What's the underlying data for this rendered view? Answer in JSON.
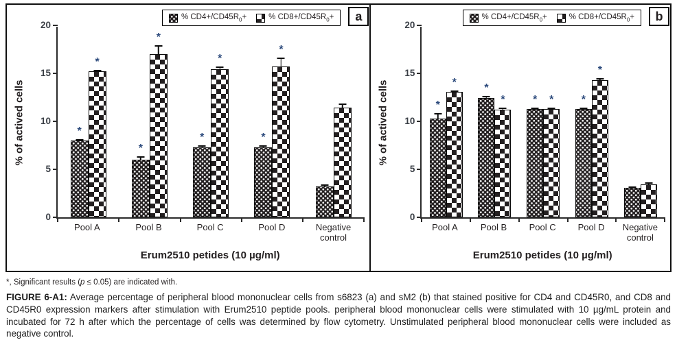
{
  "colors": {
    "bar_fill": "#231f20",
    "asterisk": "#2c4a7c",
    "axis": "#2a2a2a",
    "text": "#231f20"
  },
  "legend": {
    "items": [
      {
        "name": "cd4",
        "pre": "% CD4+/CD45R",
        "sub": "0",
        "post": "+"
      },
      {
        "name": "cd8",
        "pre": "% CD8+/CD45R",
        "sub": "0",
        "post": "+"
      }
    ]
  },
  "footnote": {
    "star": "*, ",
    "pre": "Significant results (",
    "p": "p",
    "post": " ≤ 0.05) are indicated with."
  },
  "caption": {
    "label": "FIGURE 6-A1:",
    "text": " Average percentage of peripheral blood mononuclear cells from s6823 (a) and sM2 (b) that stained positive for CD4 and CD45R0, and CD8 and CD45R0 expression markers after stimulation with Erum2510 peptide pools. peripheral blood mononuclear cells were stimulated with 10 µg/mL protein and incubated for 72 h after which the percentage of cells was determined by flow cytometry. Unstimulated peripheral blood mononuclear cells were included as negative control."
  },
  "chart_data": [
    {
      "type": "bar",
      "panel_label": "a",
      "subject": "s6823",
      "categories": [
        "Pool A",
        "Pool B",
        "Pool C",
        "Pool D",
        "Negative control"
      ],
      "series": [
        {
          "name": "% CD4+/CD45R0+",
          "values": [
            8.0,
            6.0,
            7.3,
            7.3,
            3.2
          ],
          "errors": [
            0.2,
            0.4,
            0.3,
            0.3,
            0.3
          ],
          "significant": [
            true,
            true,
            true,
            true,
            false
          ]
        },
        {
          "name": "% CD8+/CD45R0+",
          "values": [
            15.2,
            17.0,
            15.4,
            15.7,
            11.4
          ],
          "errors": [
            0.2,
            1.0,
            0.4,
            1.0,
            0.5
          ],
          "significant": [
            true,
            true,
            true,
            true,
            false
          ]
        }
      ],
      "xlabel": "Erum2510 petides (10 µg/ml)",
      "ylabel": "% of actived cells",
      "ylim": [
        0,
        20
      ],
      "yticks": [
        0,
        5,
        10,
        15,
        20
      ],
      "grid": false,
      "legend_position": "top-right"
    },
    {
      "type": "bar",
      "panel_label": "b",
      "subject": "sM2",
      "categories": [
        "Pool A",
        "Pool B",
        "Pool C",
        "Pool D",
        "Negative control"
      ],
      "series": [
        {
          "name": "% CD4+/CD45R0+",
          "values": [
            10.3,
            12.4,
            11.3,
            11.3,
            3.1
          ],
          "errors": [
            0.6,
            0.3,
            0.2,
            0.2,
            0.2
          ],
          "significant": [
            true,
            true,
            true,
            true,
            false
          ]
        },
        {
          "name": "% CD8+/CD45R0+",
          "values": [
            13.1,
            11.2,
            11.3,
            14.3,
            3.4
          ],
          "errors": [
            0.2,
            0.3,
            0.2,
            0.3,
            0.3
          ],
          "significant": [
            true,
            true,
            true,
            true,
            false
          ]
        }
      ],
      "xlabel": "Erum2510 petides (10 µg/ml)",
      "ylabel": "% of actived cells",
      "ylim": [
        0,
        20
      ],
      "yticks": [
        0,
        5,
        10,
        15,
        20
      ],
      "grid": false,
      "legend_position": "top-right"
    }
  ]
}
